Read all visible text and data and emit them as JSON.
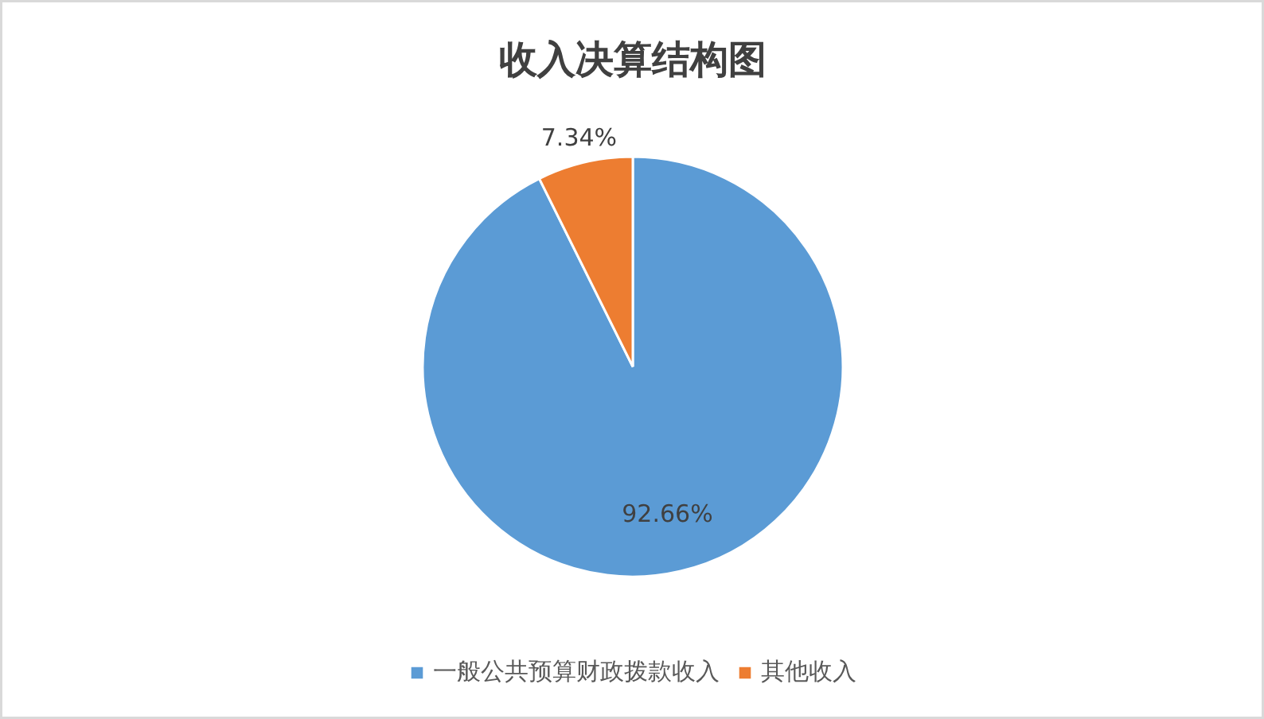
{
  "chart_data": {
    "type": "pie",
    "title": "收入决算结构图",
    "categories": [
      "一般公共预算财政拨款收入",
      "其他收入"
    ],
    "values": [
      92.66,
      7.34
    ],
    "colors": [
      "#5b9bd5",
      "#ed7d31"
    ],
    "value_labels": [
      "92.66%",
      "7.34%"
    ],
    "legend": "bottom"
  }
}
